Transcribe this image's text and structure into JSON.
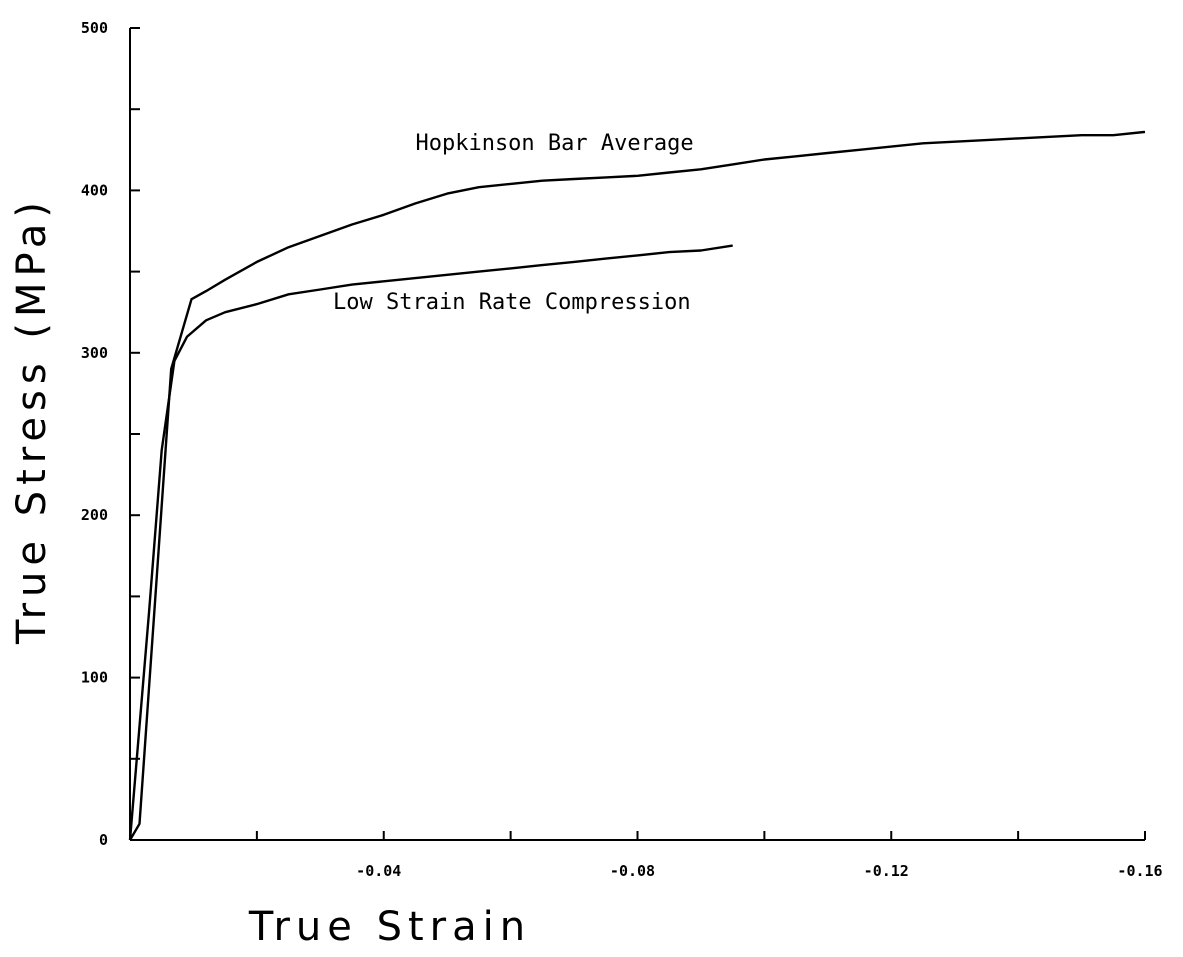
{
  "chart_data": {
    "type": "line",
    "title": "",
    "xlabel": "True Strain",
    "ylabel": "True Stress (MPa)",
    "xlim": [
      0,
      -0.16
    ],
    "ylim": [
      0,
      500
    ],
    "grid": false,
    "x_ticks": [
      0,
      -0.02,
      -0.04,
      -0.06,
      -0.08,
      -0.1,
      -0.12,
      -0.14,
      -0.16
    ],
    "x_tick_labels": [
      "",
      "",
      "-0.04",
      "",
      "-0.08",
      "",
      "-0.12",
      "",
      "-0.16"
    ],
    "y_ticks": [
      0,
      50,
      100,
      150,
      200,
      250,
      300,
      350,
      400,
      450,
      500
    ],
    "y_tick_labels": [
      "0",
      "",
      "100",
      "",
      "200",
      "",
      "300",
      "",
      "400",
      "",
      "500"
    ],
    "series": [
      {
        "name": "Hopkinson Bar Average",
        "x": [
          0,
          -0.0015,
          -0.004,
          -0.0065,
          -0.0097,
          -0.012,
          -0.015,
          -0.02,
          -0.025,
          -0.03,
          -0.035,
          -0.04,
          -0.045,
          -0.05,
          -0.055,
          -0.06,
          -0.065,
          -0.07,
          -0.075,
          -0.08,
          -0.085,
          -0.09,
          -0.095,
          -0.1,
          -0.105,
          -0.11,
          -0.115,
          -0.12,
          -0.125,
          -0.13,
          -0.135,
          -0.14,
          -0.145,
          -0.15,
          -0.155,
          -0.16
        ],
        "y": [
          0,
          10,
          150,
          290,
          333,
          338,
          345,
          356,
          365,
          372,
          379,
          385,
          392,
          398,
          402,
          404,
          406,
          407,
          408,
          409,
          411,
          413,
          416,
          419,
          421,
          423,
          425,
          427,
          429,
          430,
          431,
          432,
          433,
          434,
          434,
          436
        ]
      },
      {
        "name": "Low Strain Rate Compression",
        "x": [
          0,
          -0.0015,
          -0.003,
          -0.005,
          -0.007,
          -0.009,
          -0.012,
          -0.015,
          -0.02,
          -0.025,
          -0.03,
          -0.035,
          -0.04,
          -0.045,
          -0.05,
          -0.055,
          -0.06,
          -0.065,
          -0.07,
          -0.075,
          -0.08,
          -0.085,
          -0.09,
          -0.095
        ],
        "y": [
          0,
          70,
          140,
          240,
          295,
          310,
          320,
          325,
          330,
          336,
          339,
          342,
          344,
          346,
          348,
          350,
          352,
          354,
          356,
          358,
          360,
          362,
          363,
          366
        ]
      }
    ],
    "annotations": [
      {
        "text": "Hopkinson Bar Average",
        "x": -0.045,
        "y": 425
      },
      {
        "text": "Low Strain Rate Compression",
        "x": -0.032,
        "y": 327
      }
    ]
  }
}
